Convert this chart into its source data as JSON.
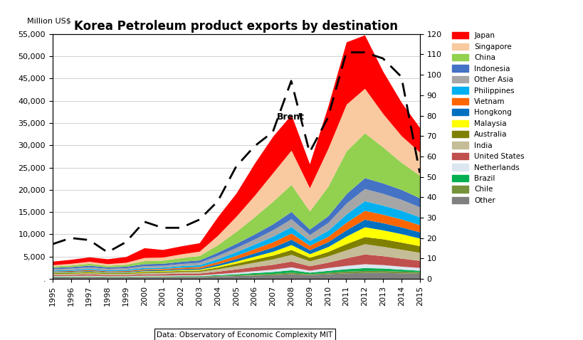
{
  "title": "Korea Petroleum product exports by destination",
  "ylabel_left": "Million US$",
  "years": [
    1995,
    1996,
    1997,
    1998,
    1999,
    2000,
    2001,
    2002,
    2003,
    2004,
    2005,
    2006,
    2007,
    2008,
    2009,
    2010,
    2011,
    2012,
    2013,
    2014,
    2015
  ],
  "brent": [
    17,
    20,
    19,
    13,
    18,
    28,
    25,
    25,
    29,
    38,
    55,
    65,
    72,
    97,
    62,
    79,
    111,
    111,
    108,
    99,
    52
  ],
  "series": {
    "Other": [
      400,
      400,
      450,
      380,
      380,
      450,
      450,
      500,
      500,
      600,
      700,
      800,
      900,
      1100,
      900,
      1100,
      1300,
      1400,
      1400,
      1300,
      1200
    ],
    "Chile": [
      80,
      90,
      90,
      80,
      80,
      90,
      90,
      100,
      100,
      130,
      180,
      230,
      280,
      380,
      230,
      330,
      400,
      450,
      450,
      400,
      360
    ],
    "Brazil": [
      80,
      90,
      90,
      70,
      80,
      90,
      90,
      100,
      100,
      180,
      230,
      340,
      430,
      530,
      330,
      430,
      540,
      640,
      540,
      440,
      340
    ],
    "Netherlands": [
      130,
      130,
      150,
      130,
      130,
      150,
      150,
      160,
      160,
      230,
      330,
      430,
      530,
      650,
      450,
      650,
      750,
      870,
      770,
      670,
      620
    ],
    "United States": [
      250,
      250,
      300,
      250,
      250,
      300,
      350,
      400,
      400,
      550,
      750,
      950,
      1100,
      1300,
      1000,
      1200,
      1700,
      2200,
      2000,
      1800,
      1600
    ],
    "India": [
      200,
      230,
      250,
      220,
      230,
      280,
      310,
      340,
      390,
      550,
      750,
      950,
      1200,
      1500,
      1100,
      1400,
      1800,
      2300,
      2100,
      2000,
      1800
    ],
    "Australia": [
      200,
      200,
      220,
      200,
      200,
      250,
      250,
      270,
      280,
      400,
      560,
      710,
      860,
      1100,
      800,
      1000,
      1400,
      1600,
      1700,
      1600,
      1500
    ],
    "Malaysia": [
      100,
      110,
      120,
      100,
      110,
      150,
      150,
      170,
      200,
      300,
      450,
      650,
      850,
      1100,
      800,
      1100,
      1700,
      2200,
      2000,
      1900,
      1700
    ],
    "Hongkong": [
      150,
      170,
      180,
      160,
      170,
      200,
      200,
      230,
      250,
      400,
      550,
      750,
      950,
      1200,
      900,
      1100,
      1400,
      1700,
      1600,
      1500,
      1400
    ],
    "Vietnam": [
      150,
      170,
      200,
      180,
      200,
      250,
      250,
      300,
      350,
      550,
      750,
      950,
      1200,
      1400,
      1000,
      1200,
      1700,
      2000,
      1900,
      1800,
      1600
    ],
    "Philippines": [
      200,
      230,
      250,
      230,
      250,
      300,
      300,
      360,
      410,
      610,
      810,
      1010,
      1260,
      1460,
      1060,
      1360,
      1860,
      2160,
      2060,
      1960,
      1760
    ],
    "Other Asia": [
      300,
      320,
      360,
      320,
      360,
      420,
      420,
      480,
      540,
      740,
      940,
      1140,
      1440,
      1740,
      1340,
      1740,
      2440,
      2740,
      2640,
      2440,
      2240
    ],
    "Indonesia": [
      300,
      320,
      360,
      320,
      360,
      430,
      450,
      480,
      540,
      740,
      940,
      1140,
      1340,
      1640,
      1240,
      1540,
      2140,
      2440,
      2340,
      2240,
      2040
    ],
    "China": [
      300,
      370,
      440,
      370,
      440,
      700,
      700,
      840,
      980,
      1680,
      2680,
      3880,
      5080,
      6080,
      4080,
      6580,
      9580,
      10080,
      8080,
      6080,
      5080
    ],
    "Singapore": [
      300,
      370,
      440,
      370,
      440,
      700,
      700,
      840,
      980,
      2100,
      3400,
      4800,
      6400,
      7700,
      5200,
      8500,
      10500,
      10000,
      7500,
      6000,
      5200
    ],
    "Japan": [
      800,
      900,
      1000,
      1100,
      1300,
      2200,
      1700,
      1800,
      1900,
      4200,
      5200,
      7200,
      8200,
      8000,
      5400,
      9500,
      14000,
      12000,
      9500,
      7500,
      5500
    ]
  },
  "colors": {
    "Japan": "#FF0000",
    "Singapore": "#F9C9A0",
    "China": "#92D050",
    "Indonesia": "#4472C4",
    "Other Asia": "#A6A6A6",
    "Philippines": "#00B0F0",
    "Vietnam": "#FF6600",
    "Hongkong": "#0070C0",
    "Malaysia": "#FFFF00",
    "Australia": "#808000",
    "India": "#C4BD97",
    "United States": "#C0504D",
    "Netherlands": "#DCE6F1",
    "Brazil": "#00B050",
    "Chile": "#76933C",
    "Other": "#808080"
  },
  "ylim_left": [
    0,
    55000
  ],
  "ylim_right": [
    0,
    120
  ],
  "yticks_left": [
    0,
    5000,
    10000,
    15000,
    20000,
    25000,
    30000,
    35000,
    40000,
    45000,
    50000,
    55000
  ],
  "yticks_right": [
    0,
    10,
    20,
    30,
    40,
    50,
    60,
    70,
    80,
    90,
    100,
    110,
    120
  ],
  "source_text": "Data: Observatory of Economic Complexity MIT",
  "brent_label": "Brent"
}
